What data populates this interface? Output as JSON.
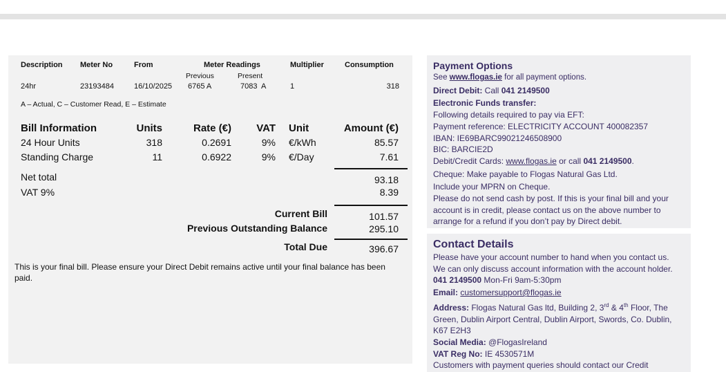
{
  "meter": {
    "headers": {
      "description": "Description",
      "meter_no": "Meter No",
      "from": "From",
      "meter_readings": "Meter Readings",
      "previous": "Previous",
      "present": "Present",
      "multiplier": "Multiplier",
      "consumption": "Consumption"
    },
    "row": {
      "description": "24hr",
      "meter_no": "23193484",
      "from": "16/10/2025",
      "previous": "6765 A",
      "present": "7083  A",
      "multiplier": "1",
      "consumption": "318"
    },
    "legend": "A – Actual, C – Customer Read, E – Estimate"
  },
  "bill": {
    "headers": {
      "info": "Bill Information",
      "units": "Units",
      "rate": "Rate (€)",
      "vat": "VAT",
      "unit": "Unit",
      "amount": "Amount (€)"
    },
    "rows": [
      {
        "info": "24 Hour Units",
        "units": "318",
        "rate": "0.2691",
        "vat": "9%",
        "unit": "€/kWh",
        "amount": "85.57"
      },
      {
        "info": "Standing Charge",
        "units": "11",
        "rate": "0.6922",
        "vat": "9%",
        "unit": "€/Day",
        "amount": "7.61"
      }
    ],
    "net_total_label": "Net total",
    "net_total": "93.18",
    "vat_label": "VAT 9%",
    "vat_amount": "8.39",
    "current_bill_label": "Current Bill",
    "current_bill": "101.57",
    "previous_balance_label": "Previous Outstanding Balance",
    "previous_balance": "295.10",
    "total_due_label": "Total Due",
    "total_due": "396.67",
    "note": "This is your final bill. Please ensure your Direct Debit remains active until your final balance has been paid."
  },
  "payment": {
    "title": "Payment Options",
    "see_pre": "See ",
    "website": "www.flogas.ie",
    "see_post": " for all payment options.",
    "dd_label": "Direct Debit:",
    "dd_text": " Call ",
    "phone": "041 2149500",
    "eft_label": "Electronic Funds transfer:",
    "eft_intro": "Following details required to pay via EFT:",
    "reference": "Payment reference: ELECTRICITY ACCOUNT 400082357",
    "iban": "IBAN: IE69BARC99021246508900",
    "bic": "BIC: BARCIE2D",
    "cards_pre": "Debit/Credit Cards: ",
    "cards_mid": " or call ",
    "cheque": "Cheque: Make payable to Flogas Natural Gas Ltd.",
    "mprn": "Include your MPRN on Cheque.",
    "cash_note": "Please do not send cash by post. If this is your final bill and your account is in credit, please contact us on the above number to arrange for a refund if you don’t pay by Direct debit."
  },
  "contact": {
    "title": "Contact Details",
    "line1": "Please have your account number to hand when you contact us.",
    "line2": "We can only discuss account information with the account holder.",
    "phone": "041 2149500",
    "hours": " Mon-Fri 9am-5:30pm",
    "email_label": "Email:",
    "email": "customersupport@flogas.ie",
    "address_label": "Address:",
    "address_a": " Flogas Natural Gas ltd, Building 2, 3",
    "sup1": "rd",
    "address_b": " & 4",
    "sup2": "th",
    "address_c": " Floor, The Green, Dublin Airport Central, Dublin Airport, Swords, Co. Dublin, K67 E2H3",
    "social_label": "Social Media:",
    "social": " @FlogasIreland",
    "vat_label": "VAT Reg No:",
    "vat": " IE 4530571M",
    "cutoff": "Customers with payment queries should contact our Credit"
  },
  "colors": {
    "accent": "#3a2d64",
    "panel": "#f2f2f2"
  }
}
